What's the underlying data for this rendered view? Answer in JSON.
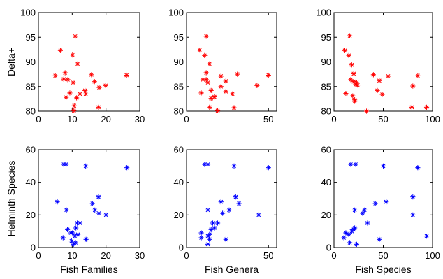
{
  "chart_data": [
    {
      "type": "scatter",
      "position": "top-left",
      "xlabel": "",
      "ylabel": "Delta+",
      "xlim": [
        0,
        30
      ],
      "ylim": [
        80,
        100
      ],
      "xticks": [
        0,
        10,
        20,
        30
      ],
      "yticks": [
        80,
        85,
        90,
        95,
        100
      ],
      "marker_color": "#ff0000",
      "marker": "asterisk",
      "points": [
        {
          "x": 5,
          "y": 87.2
        },
        {
          "x": 6.5,
          "y": 92.3
        },
        {
          "x": 7.5,
          "y": 86.5
        },
        {
          "x": 7.9,
          "y": 87.8
        },
        {
          "x": 8.2,
          "y": 82.8
        },
        {
          "x": 8.7,
          "y": 86.4
        },
        {
          "x": 9.3,
          "y": 83.7
        },
        {
          "x": 10.1,
          "y": 91.4
        },
        {
          "x": 10.3,
          "y": 85.8
        },
        {
          "x": 10.5,
          "y": 80.1
        },
        {
          "x": 10.6,
          "y": 81.1
        },
        {
          "x": 10.9,
          "y": 95.2
        },
        {
          "x": 11.3,
          "y": 82.7
        },
        {
          "x": 11.6,
          "y": 89.6
        },
        {
          "x": 12.3,
          "y": 83.5
        },
        {
          "x": 13.8,
          "y": 84.2
        },
        {
          "x": 14.0,
          "y": 83.5
        },
        {
          "x": 15.7,
          "y": 87.4
        },
        {
          "x": 16.6,
          "y": 86.0
        },
        {
          "x": 17.8,
          "y": 80.8
        },
        {
          "x": 18.0,
          "y": 84.8
        },
        {
          "x": 19.9,
          "y": 85.2
        },
        {
          "x": 26.1,
          "y": 87.3
        }
      ]
    },
    {
      "type": "scatter",
      "position": "top-middle",
      "xlabel": "",
      "ylabel": "",
      "xlim": [
        0,
        55
      ],
      "ylim": [
        80,
        100
      ],
      "xticks": [
        0,
        50
      ],
      "yticks": [
        80,
        85,
        90,
        95,
        100
      ],
      "marker_color": "#ff0000",
      "marker": "asterisk",
      "points": [
        {
          "x": 8,
          "y": 92.4
        },
        {
          "x": 9,
          "y": 83.7
        },
        {
          "x": 10,
          "y": 86.4
        },
        {
          "x": 11,
          "y": 91.3
        },
        {
          "x": 12,
          "y": 95.2
        },
        {
          "x": 12,
          "y": 87.8
        },
        {
          "x": 12,
          "y": 86.4
        },
        {
          "x": 13,
          "y": 85.8
        },
        {
          "x": 14,
          "y": 89.6
        },
        {
          "x": 14,
          "y": 80.8
        },
        {
          "x": 15,
          "y": 82.6
        },
        {
          "x": 15,
          "y": 84.2
        },
        {
          "x": 17,
          "y": 82.9
        },
        {
          "x": 19,
          "y": 80.1
        },
        {
          "x": 21,
          "y": 87.1
        },
        {
          "x": 21,
          "y": 85.0
        },
        {
          "x": 24,
          "y": 86.1
        },
        {
          "x": 24,
          "y": 84.0
        },
        {
          "x": 28,
          "y": 83.5
        },
        {
          "x": 29,
          "y": 80.7
        },
        {
          "x": 31,
          "y": 87.5
        },
        {
          "x": 43,
          "y": 85.2
        },
        {
          "x": 50,
          "y": 87.3
        }
      ]
    },
    {
      "type": "scatter",
      "position": "top-right",
      "xlabel": "",
      "ylabel": "",
      "xlim": [
        0,
        100
      ],
      "ylim": [
        80,
        100
      ],
      "xticks": [
        0,
        50,
        100
      ],
      "yticks": [
        80,
        85,
        90,
        95,
        100
      ],
      "marker_color": "#ff0000",
      "marker": "asterisk",
      "points": [
        {
          "x": 11,
          "y": 92.3
        },
        {
          "x": 12,
          "y": 83.6
        },
        {
          "x": 15,
          "y": 91.3
        },
        {
          "x": 16,
          "y": 95.3
        },
        {
          "x": 17,
          "y": 86.4
        },
        {
          "x": 18,
          "y": 89.4
        },
        {
          "x": 19,
          "y": 83.1
        },
        {
          "x": 20,
          "y": 86.0
        },
        {
          "x": 20,
          "y": 87.6
        },
        {
          "x": 21,
          "y": 82.3
        },
        {
          "x": 21,
          "y": 82.0
        },
        {
          "x": 22,
          "y": 85.4
        },
        {
          "x": 23,
          "y": 85.8
        },
        {
          "x": 24,
          "y": 85.3
        },
        {
          "x": 33,
          "y": 80.0
        },
        {
          "x": 40,
          "y": 87.4
        },
        {
          "x": 44,
          "y": 84.2
        },
        {
          "x": 46,
          "y": 86.2
        },
        {
          "x": 49,
          "y": 83.4
        },
        {
          "x": 55,
          "y": 87.1
        },
        {
          "x": 79,
          "y": 80.8
        },
        {
          "x": 80,
          "y": 85.1
        },
        {
          "x": 85,
          "y": 87.2
        },
        {
          "x": 94,
          "y": 80.8
        }
      ]
    },
    {
      "type": "scatter",
      "position": "bottom-left",
      "xlabel": "Fish Families",
      "ylabel": "Helminth Species",
      "xlim": [
        0,
        30
      ],
      "ylim": [
        0,
        60
      ],
      "xticks": [
        0,
        10,
        20,
        30
      ],
      "yticks": [
        0,
        20,
        40,
        60
      ],
      "marker_color": "#0000ff",
      "marker": "asterisk",
      "points": [
        {
          "x": 5.6,
          "y": 28
        },
        {
          "x": 7.3,
          "y": 6
        },
        {
          "x": 7.5,
          "y": 51
        },
        {
          "x": 8.2,
          "y": 51
        },
        {
          "x": 8.3,
          "y": 23
        },
        {
          "x": 8.6,
          "y": 11
        },
        {
          "x": 9.6,
          "y": 9
        },
        {
          "x": 9.8,
          "y": 4
        },
        {
          "x": 10.1,
          "y": 9
        },
        {
          "x": 10.4,
          "y": 2
        },
        {
          "x": 10.8,
          "y": 7
        },
        {
          "x": 11.0,
          "y": 3
        },
        {
          "x": 11.1,
          "y": 12
        },
        {
          "x": 11.5,
          "y": 15
        },
        {
          "x": 11.7,
          "y": 8
        },
        {
          "x": 12.3,
          "y": 15
        },
        {
          "x": 14.0,
          "y": 50
        },
        {
          "x": 14.1,
          "y": 5
        },
        {
          "x": 16.0,
          "y": 27
        },
        {
          "x": 16.7,
          "y": 23
        },
        {
          "x": 17.8,
          "y": 31
        },
        {
          "x": 17.9,
          "y": 21
        },
        {
          "x": 20.0,
          "y": 20
        },
        {
          "x": 26.2,
          "y": 49
        }
      ]
    },
    {
      "type": "scatter",
      "position": "bottom-middle",
      "xlabel": "Fish Genera",
      "ylabel": "",
      "xlim": [
        0,
        55
      ],
      "ylim": [
        0,
        60
      ],
      "xticks": [
        0,
        50
      ],
      "yticks": [
        0,
        20,
        40,
        60
      ],
      "marker_color": "#0000ff",
      "marker": "asterisk",
      "points": [
        {
          "x": 9,
          "y": 9
        },
        {
          "x": 9,
          "y": 6
        },
        {
          "x": 11,
          "y": 51
        },
        {
          "x": 13,
          "y": 51
        },
        {
          "x": 13,
          "y": 23
        },
        {
          "x": 13,
          "y": 2
        },
        {
          "x": 13,
          "y": 7
        },
        {
          "x": 14,
          "y": 5
        },
        {
          "x": 14,
          "y": 8
        },
        {
          "x": 15,
          "y": 11
        },
        {
          "x": 16,
          "y": 15
        },
        {
          "x": 17,
          "y": 12
        },
        {
          "x": 19,
          "y": 15
        },
        {
          "x": 21,
          "y": 28
        },
        {
          "x": 22,
          "y": 21
        },
        {
          "x": 24,
          "y": 5
        },
        {
          "x": 26,
          "y": 23
        },
        {
          "x": 29,
          "y": 50
        },
        {
          "x": 30,
          "y": 31
        },
        {
          "x": 32,
          "y": 27
        },
        {
          "x": 44,
          "y": 20
        },
        {
          "x": 50,
          "y": 49
        }
      ]
    },
    {
      "type": "scatter",
      "position": "bottom-right",
      "xlabel": "Fish Species",
      "ylabel": "",
      "xlim": [
        0,
        100
      ],
      "ylim": [
        0,
        60
      ],
      "xticks": [
        0,
        50,
        100
      ],
      "yticks": [
        0,
        20,
        40,
        60
      ],
      "marker_color": "#0000ff",
      "marker": "asterisk",
      "points": [
        {
          "x": 10,
          "y": 6
        },
        {
          "x": 12,
          "y": 9
        },
        {
          "x": 15,
          "y": 8
        },
        {
          "x": 16,
          "y": 3
        },
        {
          "x": 17,
          "y": 51
        },
        {
          "x": 18,
          "y": 10
        },
        {
          "x": 20,
          "y": 11
        },
        {
          "x": 21,
          "y": 23
        },
        {
          "x": 21,
          "y": 12
        },
        {
          "x": 22,
          "y": 51
        },
        {
          "x": 23,
          "y": 2
        },
        {
          "x": 29,
          "y": 21
        },
        {
          "x": 31,
          "y": 23
        },
        {
          "x": 34,
          "y": 15
        },
        {
          "x": 42,
          "y": 27
        },
        {
          "x": 46,
          "y": 5
        },
        {
          "x": 50,
          "y": 50
        },
        {
          "x": 53,
          "y": 28
        },
        {
          "x": 80,
          "y": 31
        },
        {
          "x": 80,
          "y": 20
        },
        {
          "x": 85,
          "y": 49
        },
        {
          "x": 94,
          "y": 7
        }
      ]
    }
  ]
}
